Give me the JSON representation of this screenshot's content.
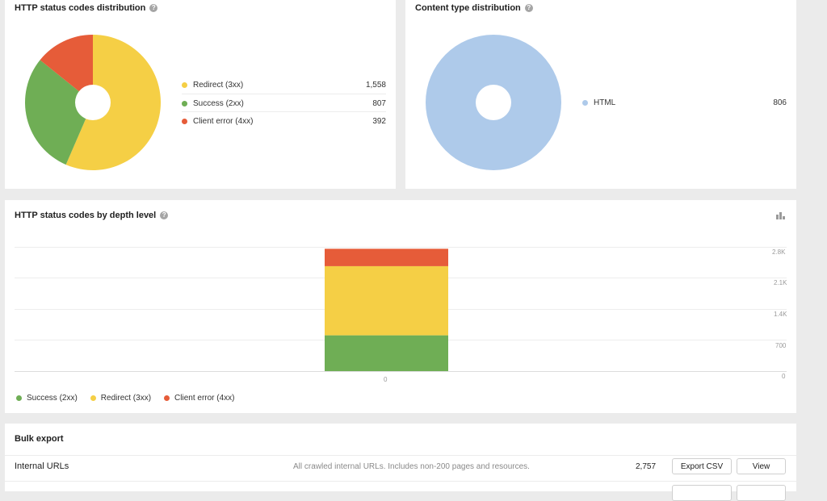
{
  "http_status_card": {
    "title": "HTTP status codes distribution",
    "legend": [
      {
        "label": "Redirect (3xx)",
        "value": "1,558",
        "color": "#f5cf45"
      },
      {
        "label": "Success (2xx)",
        "value": "807",
        "color": "#6fae55"
      },
      {
        "label": "Client error (4xx)",
        "value": "392",
        "color": "#e65c39"
      }
    ]
  },
  "content_type_card": {
    "title": "Content type distribution",
    "legend": [
      {
        "label": "HTML",
        "value": "806",
        "color": "#aecaea"
      }
    ]
  },
  "depth_card": {
    "title": "HTTP status codes by depth level",
    "chart_icon": "bar-chart-icon",
    "legend": [
      {
        "label": "Success (2xx)",
        "color": "#6fae55"
      },
      {
        "label": "Redirect (3xx)",
        "color": "#f5cf45"
      },
      {
        "label": "Client error (4xx)",
        "color": "#e65c39"
      }
    ]
  },
  "bulk_export": {
    "title": "Bulk export",
    "rows": [
      {
        "name": "Internal URLs",
        "description": "All crawled internal URLs. Includes non-200 pages and resources.",
        "count": "2,757",
        "export_label": "Export CSV",
        "view_label": "View"
      }
    ]
  },
  "chart_data": [
    {
      "type": "pie",
      "title": "HTTP status codes distribution",
      "categories": [
        "Redirect (3xx)",
        "Success (2xx)",
        "Client error (4xx)"
      ],
      "values": [
        1558,
        807,
        392
      ],
      "colors": [
        "#f5cf45",
        "#6fae55",
        "#e65c39"
      ]
    },
    {
      "type": "pie",
      "title": "Content type distribution",
      "categories": [
        "HTML"
      ],
      "values": [
        806
      ],
      "colors": [
        "#aecaea"
      ]
    },
    {
      "type": "bar",
      "title": "HTTP status codes by depth level",
      "categories": [
        "0"
      ],
      "series": [
        {
          "name": "Success (2xx)",
          "values": [
            807
          ],
          "color": "#6fae55"
        },
        {
          "name": "Redirect (3xx)",
          "values": [
            1558
          ],
          "color": "#f5cf45"
        },
        {
          "name": "Client error (4xx)",
          "values": [
            392
          ],
          "color": "#e65c39"
        }
      ],
      "yticks": [
        "0",
        "700",
        "1.4K",
        "2.1K",
        "2.8K"
      ],
      "ylim": [
        0,
        2800
      ],
      "stacked": true
    }
  ]
}
